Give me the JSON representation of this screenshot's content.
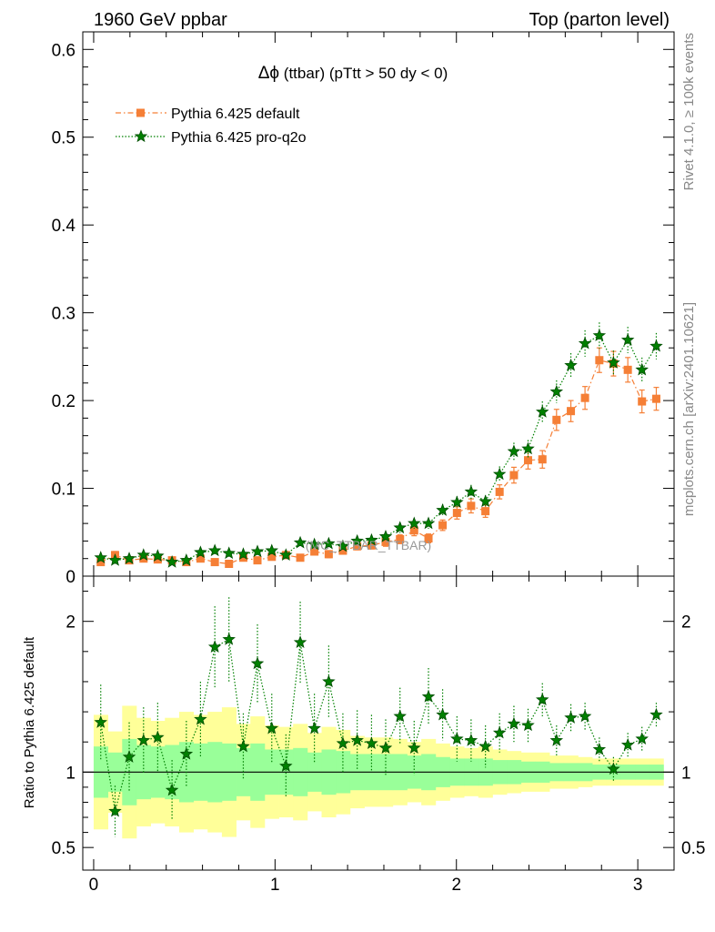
{
  "header": {
    "left": "1960 GeV ppbar",
    "right": "Top (parton level)"
  },
  "side_labels": {
    "rivet": "Rivet 4.1.0, ≥ 100k events",
    "mcplots": "mcplots.cern.ch [arXiv:2401.10621]"
  },
  "chart_data": {
    "type": "scatter",
    "title_symbol": "Δϕ",
    "title_rest": " (ttbar) (pTtt > 50 dy < 0)",
    "watermark": "(MC_TTBAR_TTBAR)",
    "xlabel": "",
    "ylabel": "",
    "xlim": [
      -0.06,
      3.2
    ],
    "ylim": [
      0,
      0.62
    ],
    "x_ticks": [
      "0",
      "1",
      "2",
      "3"
    ],
    "y_ticks": [
      "0",
      "0.1",
      "0.2",
      "0.3",
      "0.4",
      "0.5",
      "0.6"
    ],
    "x": [
      0.039,
      0.118,
      0.196,
      0.275,
      0.353,
      0.432,
      0.511,
      0.589,
      0.668,
      0.746,
      0.825,
      0.903,
      0.982,
      1.06,
      1.139,
      1.217,
      1.296,
      1.374,
      1.453,
      1.532,
      1.61,
      1.689,
      1.767,
      1.846,
      1.924,
      2.003,
      2.081,
      2.16,
      2.238,
      2.317,
      2.395,
      2.474,
      2.552,
      2.631,
      2.709,
      2.788,
      2.866,
      2.945,
      3.023,
      3.102
    ],
    "series": [
      {
        "name": "Pythia 6.425 default",
        "color": "#f57f36",
        "marker": "square",
        "values": [
          0.016,
          0.024,
          0.018,
          0.02,
          0.019,
          0.018,
          0.016,
          0.02,
          0.016,
          0.014,
          0.021,
          0.018,
          0.022,
          0.024,
          0.021,
          0.028,
          0.025,
          0.029,
          0.034,
          0.035,
          0.039,
          0.042,
          0.052,
          0.043,
          0.058,
          0.072,
          0.08,
          0.074,
          0.096,
          0.115,
          0.132,
          0.133,
          0.178,
          0.188,
          0.203,
          0.246,
          0.242,
          0.235,
          0.199,
          0.202
        ],
        "errors": [
          0.003,
          0.004,
          0.003,
          0.003,
          0.003,
          0.003,
          0.003,
          0.003,
          0.003,
          0.003,
          0.003,
          0.003,
          0.003,
          0.004,
          0.003,
          0.004,
          0.004,
          0.004,
          0.004,
          0.004,
          0.005,
          0.005,
          0.006,
          0.005,
          0.006,
          0.007,
          0.008,
          0.007,
          0.008,
          0.009,
          0.01,
          0.01,
          0.012,
          0.012,
          0.013,
          0.014,
          0.014,
          0.014,
          0.013,
          0.013
        ]
      },
      {
        "name": "Pythia 6.425 pro-q2o",
        "color": "#008000",
        "marker": "star",
        "values": [
          0.021,
          0.018,
          0.02,
          0.024,
          0.023,
          0.016,
          0.018,
          0.027,
          0.029,
          0.026,
          0.025,
          0.028,
          0.029,
          0.024,
          0.038,
          0.036,
          0.037,
          0.034,
          0.04,
          0.041,
          0.045,
          0.055,
          0.06,
          0.06,
          0.075,
          0.084,
          0.096,
          0.085,
          0.116,
          0.142,
          0.145,
          0.187,
          0.21,
          0.24,
          0.265,
          0.274,
          0.243,
          0.269,
          0.235,
          0.262
        ],
        "errors": [
          0.004,
          0.004,
          0.004,
          0.004,
          0.004,
          0.003,
          0.004,
          0.004,
          0.004,
          0.004,
          0.004,
          0.004,
          0.004,
          0.004,
          0.005,
          0.005,
          0.005,
          0.005,
          0.005,
          0.005,
          0.005,
          0.006,
          0.006,
          0.006,
          0.007,
          0.007,
          0.008,
          0.007,
          0.009,
          0.01,
          0.01,
          0.012,
          0.013,
          0.014,
          0.015,
          0.015,
          0.014,
          0.015,
          0.014,
          0.015
        ]
      }
    ],
    "ratio": {
      "ylabel": "Ratio to Pythia 6.425 default",
      "ylim": [
        0.35,
        2.3
      ],
      "y_ticks": [
        "0.5",
        "1",
        "2"
      ],
      "reference_line": 1,
      "band_inner_color": "#99ff99",
      "band_outer_color": "#ffff99",
      "band_inner_halfwidth": [
        0.17,
        0.13,
        0.22,
        0.18,
        0.17,
        0.18,
        0.2,
        0.19,
        0.2,
        0.19,
        0.16,
        0.19,
        0.15,
        0.15,
        0.16,
        0.13,
        0.15,
        0.14,
        0.12,
        0.12,
        0.12,
        0.12,
        0.11,
        0.12,
        0.1,
        0.09,
        0.09,
        0.09,
        0.08,
        0.08,
        0.07,
        0.07,
        0.06,
        0.06,
        0.06,
        0.05,
        0.05,
        0.05,
        0.05,
        0.05
      ],
      "band_outer_halfwidth": [
        0.38,
        0.27,
        0.44,
        0.36,
        0.34,
        0.36,
        0.4,
        0.38,
        0.4,
        0.43,
        0.32,
        0.37,
        0.31,
        0.3,
        0.32,
        0.26,
        0.3,
        0.28,
        0.24,
        0.23,
        0.23,
        0.22,
        0.2,
        0.22,
        0.19,
        0.17,
        0.16,
        0.17,
        0.15,
        0.14,
        0.13,
        0.13,
        0.11,
        0.11,
        0.1,
        0.09,
        0.09,
        0.09,
        0.09,
        0.09
      ],
      "values": [
        1.33,
        0.74,
        1.1,
        1.21,
        1.23,
        0.88,
        1.12,
        1.35,
        1.83,
        1.88,
        1.17,
        1.72,
        1.29,
        1.04,
        1.86,
        1.29,
        1.6,
        1.19,
        1.21,
        1.19,
        1.16,
        1.37,
        1.16,
        1.5,
        1.38,
        1.22,
        1.21,
        1.17,
        1.26,
        1.32,
        1.31,
        1.48,
        1.21,
        1.36,
        1.37,
        1.15,
        1.02,
        1.18,
        1.22,
        1.38
      ],
      "errors": [
        0.25,
        0.17,
        0.23,
        0.22,
        0.23,
        0.2,
        0.22,
        0.25,
        0.27,
        0.28,
        0.22,
        0.26,
        0.23,
        0.21,
        0.27,
        0.23,
        0.24,
        0.2,
        0.2,
        0.19,
        0.19,
        0.19,
        0.18,
        0.19,
        0.17,
        0.15,
        0.14,
        0.14,
        0.13,
        0.12,
        0.11,
        0.11,
        0.1,
        0.09,
        0.09,
        0.08,
        0.08,
        0.08,
        0.08,
        0.08
      ]
    }
  }
}
